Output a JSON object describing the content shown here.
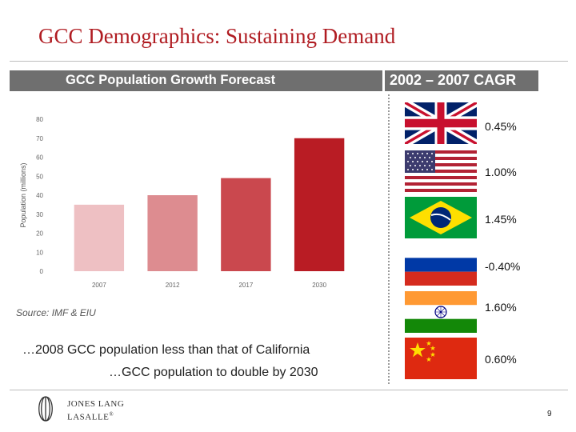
{
  "slide": {
    "title": "GCC Demographics: Sustaining Demand",
    "chart_header": "GCC Population Growth Forecast",
    "cagr_header": "2002 – 2007 CAGR",
    "source": "Source: IMF & EIU",
    "callout_line1": "…2008 GCC population less than that of California",
    "callout_line2": "…GCC population to double by 2030",
    "page_number": "9"
  },
  "logo": {
    "line1": "JONES LANG",
    "line2": "LASALLE",
    "trademark": "®"
  },
  "cagr": [
    {
      "country_icon": "uk-flag-icon",
      "value": "0.45%"
    },
    {
      "country_icon": "us-flag-icon",
      "value": "1.00%"
    },
    {
      "country_icon": "brazil-flag-icon",
      "value": "1.45%"
    },
    {
      "country_icon": "russia-flag-icon",
      "value": "-0.40%"
    },
    {
      "country_icon": "india-flag-icon",
      "value": "1.60%"
    },
    {
      "country_icon": "china-flag-icon",
      "value": "0.60%"
    }
  ],
  "chart_data": {
    "type": "bar",
    "categories": [
      "2007",
      "2012",
      "2017",
      "2030"
    ],
    "values": [
      35,
      40,
      49,
      70
    ],
    "colors": [
      "#eec0c3",
      "#dd8c90",
      "#ca484e",
      "#b91c24"
    ],
    "ylabel": "Population (millions)",
    "xlabel": "",
    "ylim": [
      0,
      80
    ],
    "yticks": [
      "0",
      "10",
      "20",
      "30",
      "40",
      "50",
      "60",
      "70",
      "80"
    ],
    "grid": false
  }
}
